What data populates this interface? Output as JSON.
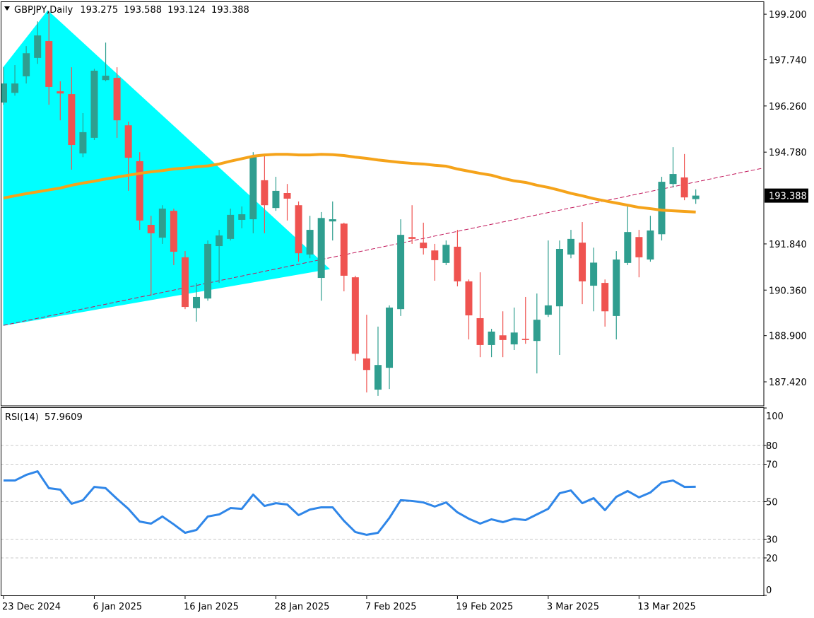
{
  "chart_data": [
    {
      "type": "candlestick",
      "title": "GBPJPY,Daily",
      "categories": [
        "23 Dec 2024",
        null,
        null,
        null,
        null,
        null,
        null,
        null,
        "6 Jan 2025",
        null,
        null,
        null,
        null,
        null,
        null,
        null,
        "16 Jan 2025",
        null,
        null,
        null,
        null,
        null,
        null,
        null,
        "28 Jan 2025",
        null,
        null,
        null,
        null,
        null,
        null,
        null,
        "7 Feb 2025",
        null,
        null,
        null,
        null,
        null,
        null,
        null,
        "19 Feb 2025",
        null,
        null,
        null,
        null,
        null,
        null,
        null,
        "3 Mar 2025",
        null,
        null,
        null,
        null,
        null,
        null,
        null,
        "13 Mar 2025",
        null,
        null,
        null,
        null,
        null
      ],
      "open": [
        196.37,
        196.68,
        197.21,
        197.8,
        198.34,
        196.73,
        196.64,
        194.74,
        195.24,
        197.09,
        197.16,
        195.64,
        194.49,
        192.45,
        192.04,
        192.9,
        191.41,
        189.78,
        190.09,
        191.77,
        192.0,
        192.61,
        192.63,
        193.88,
        192.99,
        193.47,
        193.08,
        191.5,
        190.75,
        192.56,
        192.49,
        190.77,
        188.17,
        187.17,
        187.87,
        189.75,
        192.06,
        191.88,
        191.63,
        191.23,
        191.75,
        190.64,
        189.46,
        188.6,
        188.91,
        188.62,
        188.8,
        188.73,
        189.57,
        189.84,
        191.5,
        191.88,
        190.5,
        190.59,
        189.53,
        191.23,
        192.06,
        191.34,
        192.15,
        193.76,
        193.97,
        193.275
      ],
      "high": [
        197.5,
        197.57,
        198.18,
        198.97,
        199.31,
        197.05,
        197.5,
        196.03,
        197.45,
        198.29,
        197.5,
        195.76,
        194.78,
        192.74,
        193.08,
        192.97,
        191.61,
        190.59,
        191.95,
        192.29,
        192.97,
        193.04,
        194.78,
        194.67,
        193.99,
        193.76,
        193.2,
        192.74,
        192.86,
        193.2,
        192.52,
        190.82,
        189.57,
        189.19,
        189.87,
        192.63,
        193.08,
        192.52,
        191.84,
        191.95,
        192.29,
        190.7,
        190.93,
        189.12,
        189.68,
        189.8,
        190.14,
        190.25,
        191.95,
        191.95,
        192.29,
        192.54,
        191.72,
        190.7,
        191.61,
        193.08,
        192.29,
        192.74,
        193.99,
        194.94,
        194.72,
        193.588
      ],
      "low": [
        196.3,
        196.59,
        196.98,
        197.61,
        196.3,
        195.8,
        194.22,
        194.62,
        195.17,
        197.05,
        195.24,
        193.54,
        192.29,
        190.18,
        191.84,
        191.16,
        189.75,
        189.35,
        190.02,
        190.59,
        191.95,
        192.34,
        192.18,
        192.18,
        192.9,
        192.59,
        191.27,
        191.38,
        190.02,
        191.95,
        190.32,
        188.1,
        187.08,
        186.97,
        187.19,
        189.53,
        191.84,
        191.5,
        190.66,
        191.16,
        190.48,
        188.78,
        188.21,
        188.21,
        188.21,
        188.44,
        188.64,
        187.69,
        189.5,
        188.28,
        191.38,
        189.91,
        189.68,
        189.19,
        188.78,
        191.16,
        190.77,
        191.27,
        191.95,
        193.65,
        193.24,
        193.124
      ],
      "close": [
        196.98,
        196.98,
        197.95,
        198.52,
        196.87,
        196.66,
        195.01,
        195.42,
        197.39,
        197.23,
        195.8,
        194.6,
        192.59,
        192.18,
        192.97,
        191.59,
        189.82,
        190.14,
        191.84,
        192.11,
        192.77,
        192.79,
        194.67,
        193.08,
        193.54,
        193.29,
        191.54,
        192.29,
        192.67,
        192.63,
        190.82,
        188.32,
        187.8,
        187.96,
        189.8,
        192.13,
        192.0,
        191.7,
        191.32,
        191.81,
        190.64,
        189.55,
        188.6,
        189.03,
        188.76,
        189.0,
        188.76,
        189.41,
        189.87,
        191.68,
        192.0,
        190.64,
        191.24,
        189.68,
        191.34,
        192.22,
        191.41,
        192.27,
        193.83,
        194.08,
        193.33,
        193.388
      ],
      "up_color": "#2f9e8f",
      "down_color": "#ef5350",
      "moving_average": {
        "color": "#f5a31a",
        "values": [
          193.31,
          193.38,
          193.45,
          193.51,
          193.57,
          193.63,
          193.72,
          193.79,
          193.85,
          193.92,
          193.98,
          194.04,
          194.1,
          194.15,
          194.19,
          194.24,
          194.27,
          194.31,
          194.34,
          194.4,
          194.49,
          194.57,
          194.65,
          194.69,
          194.71,
          194.71,
          194.69,
          194.69,
          194.71,
          194.7,
          194.67,
          194.62,
          194.58,
          194.53,
          194.49,
          194.45,
          194.42,
          194.4,
          194.36,
          194.33,
          194.24,
          194.17,
          194.1,
          194.04,
          193.94,
          193.86,
          193.81,
          193.72,
          193.65,
          193.56,
          193.46,
          193.38,
          193.29,
          193.22,
          193.15,
          193.08,
          193.01,
          192.97,
          192.92,
          192.9,
          192.88,
          192.86
        ]
      },
      "trendline": {
        "color": "#c2185b",
        "x": [
          0,
          66.8
        ],
        "y": [
          189.23,
          194.26
        ]
      },
      "triangle": {
        "color": "#00ffff",
        "x": [
          0,
          3.9,
          28.7,
          0
        ],
        "y": [
          197.5,
          199.31,
          191.04,
          189.23
        ]
      },
      "ylim": [
        186.65,
        199.61
      ],
      "yticks": [
        {
          "value": 199.2,
          "label": "199.200"
        },
        {
          "value": 197.74,
          "label": "197.740"
        },
        {
          "value": 196.26,
          "label": "196.260"
        },
        {
          "value": 194.78,
          "label": "194.780"
        },
        {
          "value": 191.84,
          "label": "191.840"
        },
        {
          "value": 190.36,
          "label": "190.360"
        },
        {
          "value": 188.9,
          "label": "188.900"
        },
        {
          "value": 187.42,
          "label": "187.420"
        }
      ]
    },
    {
      "type": "line",
      "title": "RSI(14)",
      "color": "#2f86e8",
      "values": [
        61.3,
        61.3,
        64.3,
        66.2,
        57.2,
        56.4,
        48.9,
        50.8,
        57.9,
        57.2,
        51.5,
        46.2,
        39.4,
        38.3,
        42.1,
        37.9,
        33.4,
        34.9,
        42.1,
        43.2,
        46.6,
        46.2,
        53.8,
        47.7,
        49.2,
        48.5,
        42.8,
        45.8,
        47.0,
        47.0,
        39.8,
        33.8,
        32.3,
        33.4,
        41.3,
        50.8,
        50.4,
        49.6,
        47.4,
        49.6,
        44.3,
        40.9,
        38.3,
        40.6,
        39.1,
        40.9,
        40.2,
        43.2,
        46.2,
        54.5,
        56.0,
        49.2,
        51.9,
        45.5,
        52.6,
        55.7,
        52.3,
        54.9,
        60.2,
        61.3,
        57.9,
        57.9609
      ],
      "ylim": [
        0,
        100
      ],
      "yticks": [
        100,
        80,
        70,
        50,
        30,
        20,
        0
      ]
    }
  ]
}
